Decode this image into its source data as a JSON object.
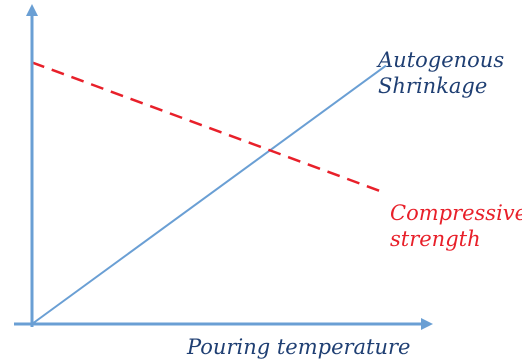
{
  "chart_data": {
    "type": "line",
    "xlabel": "Pouring temperature",
    "ylabel": "",
    "grid": false,
    "legend": "none",
    "axes_color": "#6a9fd4",
    "series": [
      {
        "name": "Autogenous Shrinkage",
        "label_lines": [
          "Autogenous",
          "Shrinkage"
        ],
        "color": "#6a9fd4",
        "label_color": "#1f3f73",
        "style": "solid",
        "points": [
          [
            0,
            0
          ],
          [
            1,
            0.81
          ]
        ]
      },
      {
        "name": "Compressive strength",
        "label_lines": [
          "Compressive",
          "strength"
        ],
        "color": "#e8202a",
        "label_color": "#e8202a",
        "style": "dashed",
        "points": [
          [
            0,
            0.82
          ],
          [
            1,
            0.41
          ]
        ]
      }
    ]
  }
}
